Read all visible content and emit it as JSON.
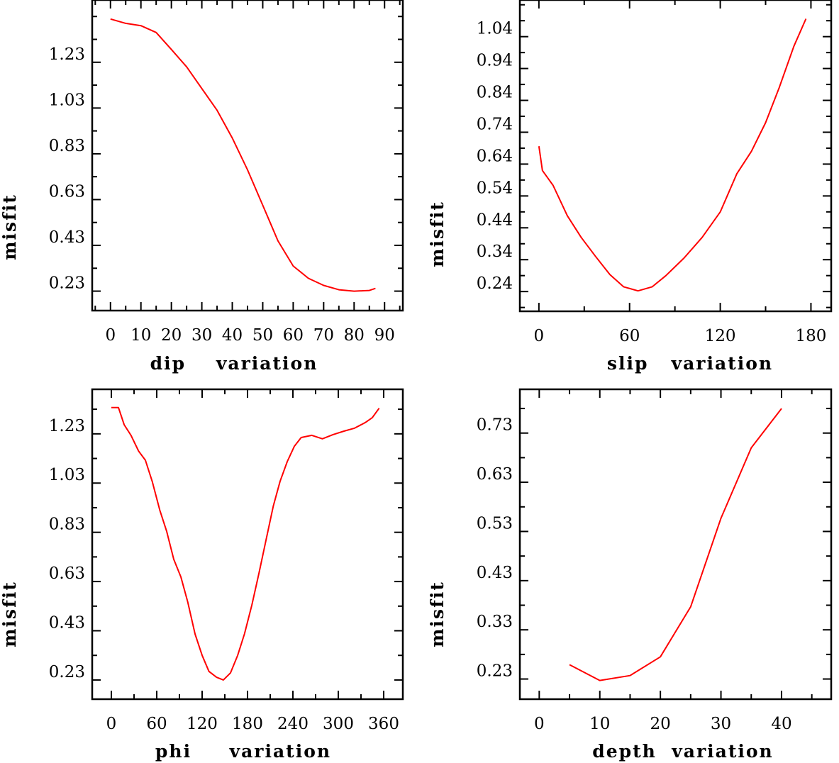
{
  "chart_data": [
    {
      "type": "line",
      "xlabel": "dip    variation",
      "ylabel": "misfit",
      "xlim": [
        -6,
        96
      ],
      "ylim": [
        0.145,
        1.502
      ],
      "xticks": [
        0,
        10,
        20,
        30,
        40,
        50,
        60,
        70,
        80,
        90
      ],
      "xtick_labels": [
        "0",
        "10",
        "20",
        "30",
        "40",
        "50",
        "60",
        "70",
        "80",
        "90"
      ],
      "xminor_step": 5,
      "yticks": [
        0.23,
        0.43,
        0.63,
        0.83,
        1.03,
        1.23
      ],
      "ytick_labels": [
        "0.23",
        "0.43",
        "0.63",
        "0.83",
        "1.03",
        "1.23"
      ],
      "yminor_step": 0.1,
      "grid": false,
      "series": [
        {
          "name": "misfit",
          "color": "#ff0000",
          "x": [
            0,
            5,
            10,
            15,
            20,
            25,
            30,
            35,
            40,
            45,
            50,
            55,
            60,
            65,
            70,
            75,
            80,
            85,
            87
          ],
          "y": [
            1.419,
            1.4,
            1.39,
            1.36,
            1.286,
            1.21,
            1.115,
            1.02,
            0.899,
            0.76,
            0.605,
            0.45,
            0.34,
            0.286,
            0.255,
            0.236,
            0.23,
            0.233,
            0.242
          ]
        }
      ]
    },
    {
      "type": "line",
      "xlabel": "slip   variation",
      "ylabel": "misfit",
      "xlim": [
        -12.6,
        193.4
      ],
      "ylim": [
        0.178,
        1.155
      ],
      "xticks": [
        0,
        60,
        120,
        180
      ],
      "xtick_labels": [
        "0",
        "60",
        "120",
        "180"
      ],
      "xminor_step": 30,
      "yticks": [
        0.24,
        0.34,
        0.44,
        0.54,
        0.64,
        0.74,
        0.84,
        0.94,
        1.04
      ],
      "ytick_labels": [
        "0.24",
        "0.34",
        "0.44",
        "0.54",
        "0.64",
        "0.74",
        "0.84",
        "0.94",
        "1.04"
      ],
      "yminor_step": 0.05,
      "grid": false,
      "series": [
        {
          "name": "misfit",
          "color": "#ff0000",
          "x": [
            0,
            2.3,
            9.4,
            18.8,
            28,
            37.5,
            47,
            56,
            65.6,
            75,
            84,
            96,
            108,
            120,
            131,
            140.6,
            150,
            159,
            168.7,
            176.7
          ],
          "y": [
            0.696,
            0.62,
            0.573,
            0.478,
            0.41,
            0.35,
            0.293,
            0.255,
            0.242,
            0.255,
            0.29,
            0.345,
            0.41,
            0.49,
            0.61,
            0.68,
            0.77,
            0.88,
            1.01,
            1.096
          ]
        }
      ]
    },
    {
      "type": "line",
      "xlabel": "phi     variation",
      "ylabel": "misfit",
      "xlim": [
        -25.3,
        385.3
      ],
      "ylim": [
        0.152,
        1.411
      ],
      "xticks": [
        0,
        60,
        120,
        180,
        240,
        300,
        360
      ],
      "xtick_labels": [
        "0",
        "60",
        "120",
        "180",
        "240",
        "300",
        "360"
      ],
      "xminor_step": 30,
      "yticks": [
        0.23,
        0.43,
        0.63,
        0.83,
        1.03,
        1.23
      ],
      "ytick_labels": [
        "0.23",
        "0.43",
        "0.63",
        "0.83",
        "1.03",
        "1.23"
      ],
      "yminor_step": 0.1,
      "grid": false,
      "series": [
        {
          "name": "misfit",
          "color": "#ff0000",
          "x": [
            0,
            9.4,
            17,
            26,
            36,
            45,
            54,
            64,
            73,
            82.5,
            92,
            101,
            110.6,
            120,
            129,
            139,
            148,
            157.5,
            167,
            176,
            185.6,
            195,
            204,
            214,
            223,
            232.5,
            242,
            251,
            265,
            279,
            293,
            307.5,
            321.6,
            335.6,
            345,
            354
          ],
          "y": [
            1.337,
            1.337,
            1.267,
            1.224,
            1.16,
            1.123,
            1.037,
            0.92,
            0.835,
            0.72,
            0.648,
            0.547,
            0.417,
            0.33,
            0.265,
            0.241,
            0.23,
            0.259,
            0.33,
            0.417,
            0.533,
            0.662,
            0.792,
            0.936,
            1.037,
            1.117,
            1.18,
            1.215,
            1.224,
            1.21,
            1.227,
            1.241,
            1.253,
            1.276,
            1.296,
            1.334
          ]
        }
      ]
    },
    {
      "type": "line",
      "xlabel": "depth  variation",
      "ylabel": "misfit",
      "xlim": [
        -3.2,
        48.2
      ],
      "ylim": [
        0.189,
        0.819
      ],
      "xticks": [
        0,
        10,
        20,
        30,
        40
      ],
      "xtick_labels": [
        "0",
        "10",
        "20",
        "30",
        "40"
      ],
      "xminor_step": 5,
      "yticks": [
        0.23,
        0.33,
        0.43,
        0.53,
        0.63,
        0.73
      ],
      "ytick_labels": [
        "0.23",
        "0.33",
        "0.43",
        "0.53",
        "0.63",
        "0.73"
      ],
      "yminor_step": 0.05,
      "grid": false,
      "series": [
        {
          "name": "misfit",
          "color": "#ff0000",
          "x": [
            5,
            10,
            15,
            20,
            25,
            30,
            35,
            40
          ],
          "y": [
            0.259,
            0.227,
            0.237,
            0.275,
            0.377,
            0.557,
            0.7,
            0.78
          ]
        }
      ]
    }
  ]
}
